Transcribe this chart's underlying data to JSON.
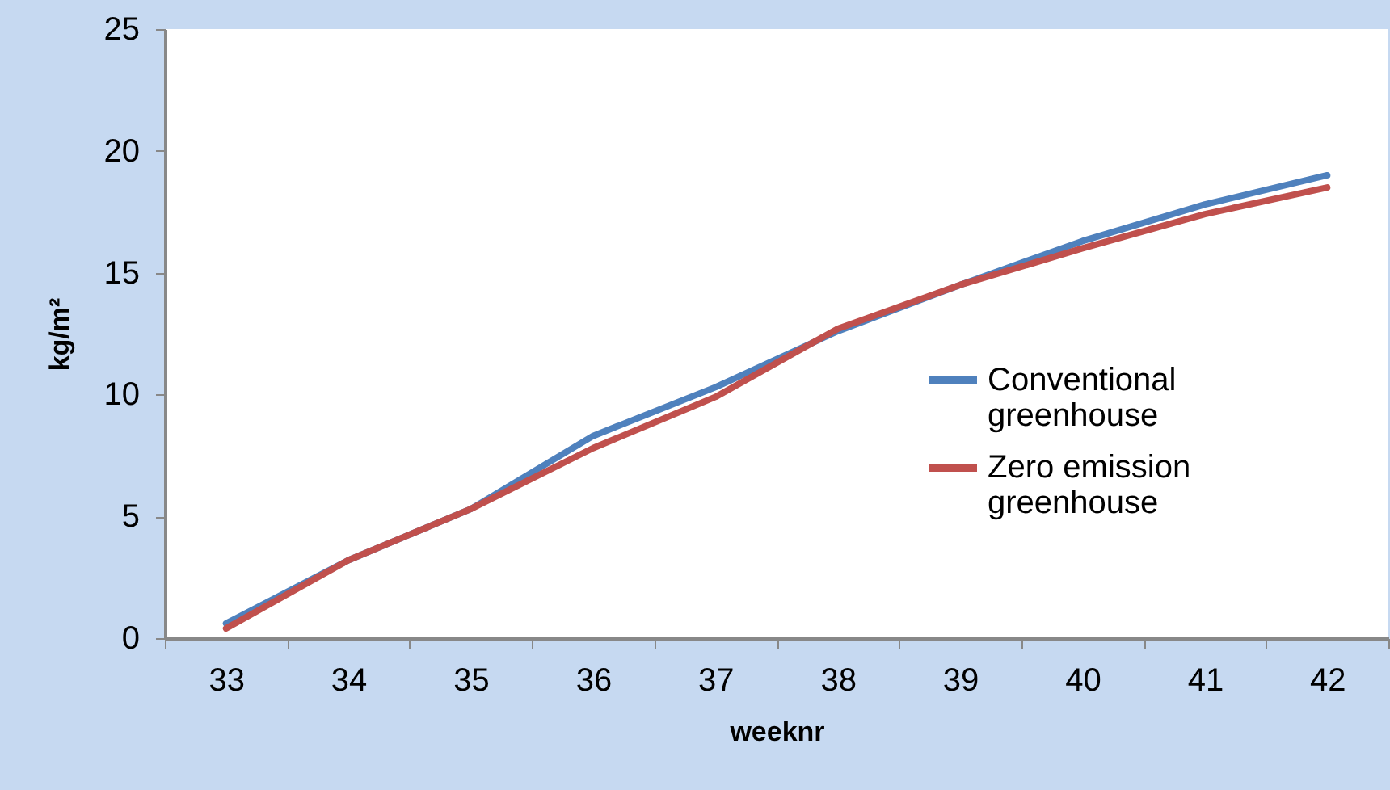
{
  "chart_data": {
    "type": "line",
    "xlabel": "weeknr",
    "ylabel": "kg/m²",
    "categories": [
      "33",
      "34",
      "35",
      "36",
      "37",
      "38",
      "39",
      "40",
      "41",
      "42"
    ],
    "series": [
      {
        "name": "Conventional greenhouse",
        "color": "#4f81bd",
        "values": [
          0.6,
          3.2,
          5.3,
          8.3,
          10.3,
          12.6,
          14.5,
          16.3,
          17.8,
          19.0
        ]
      },
      {
        "name": "Zero emission greenhouse",
        "color": "#c0504d",
        "values": [
          0.4,
          3.2,
          5.3,
          7.8,
          9.9,
          12.7,
          14.5,
          16.0,
          17.4,
          18.5
        ]
      }
    ],
    "ylim": [
      0,
      25
    ],
    "yticks": [
      0,
      5,
      10,
      15,
      20,
      25
    ],
    "grid": false,
    "legend": "right",
    "marker": "none",
    "line_style": "solid"
  }
}
